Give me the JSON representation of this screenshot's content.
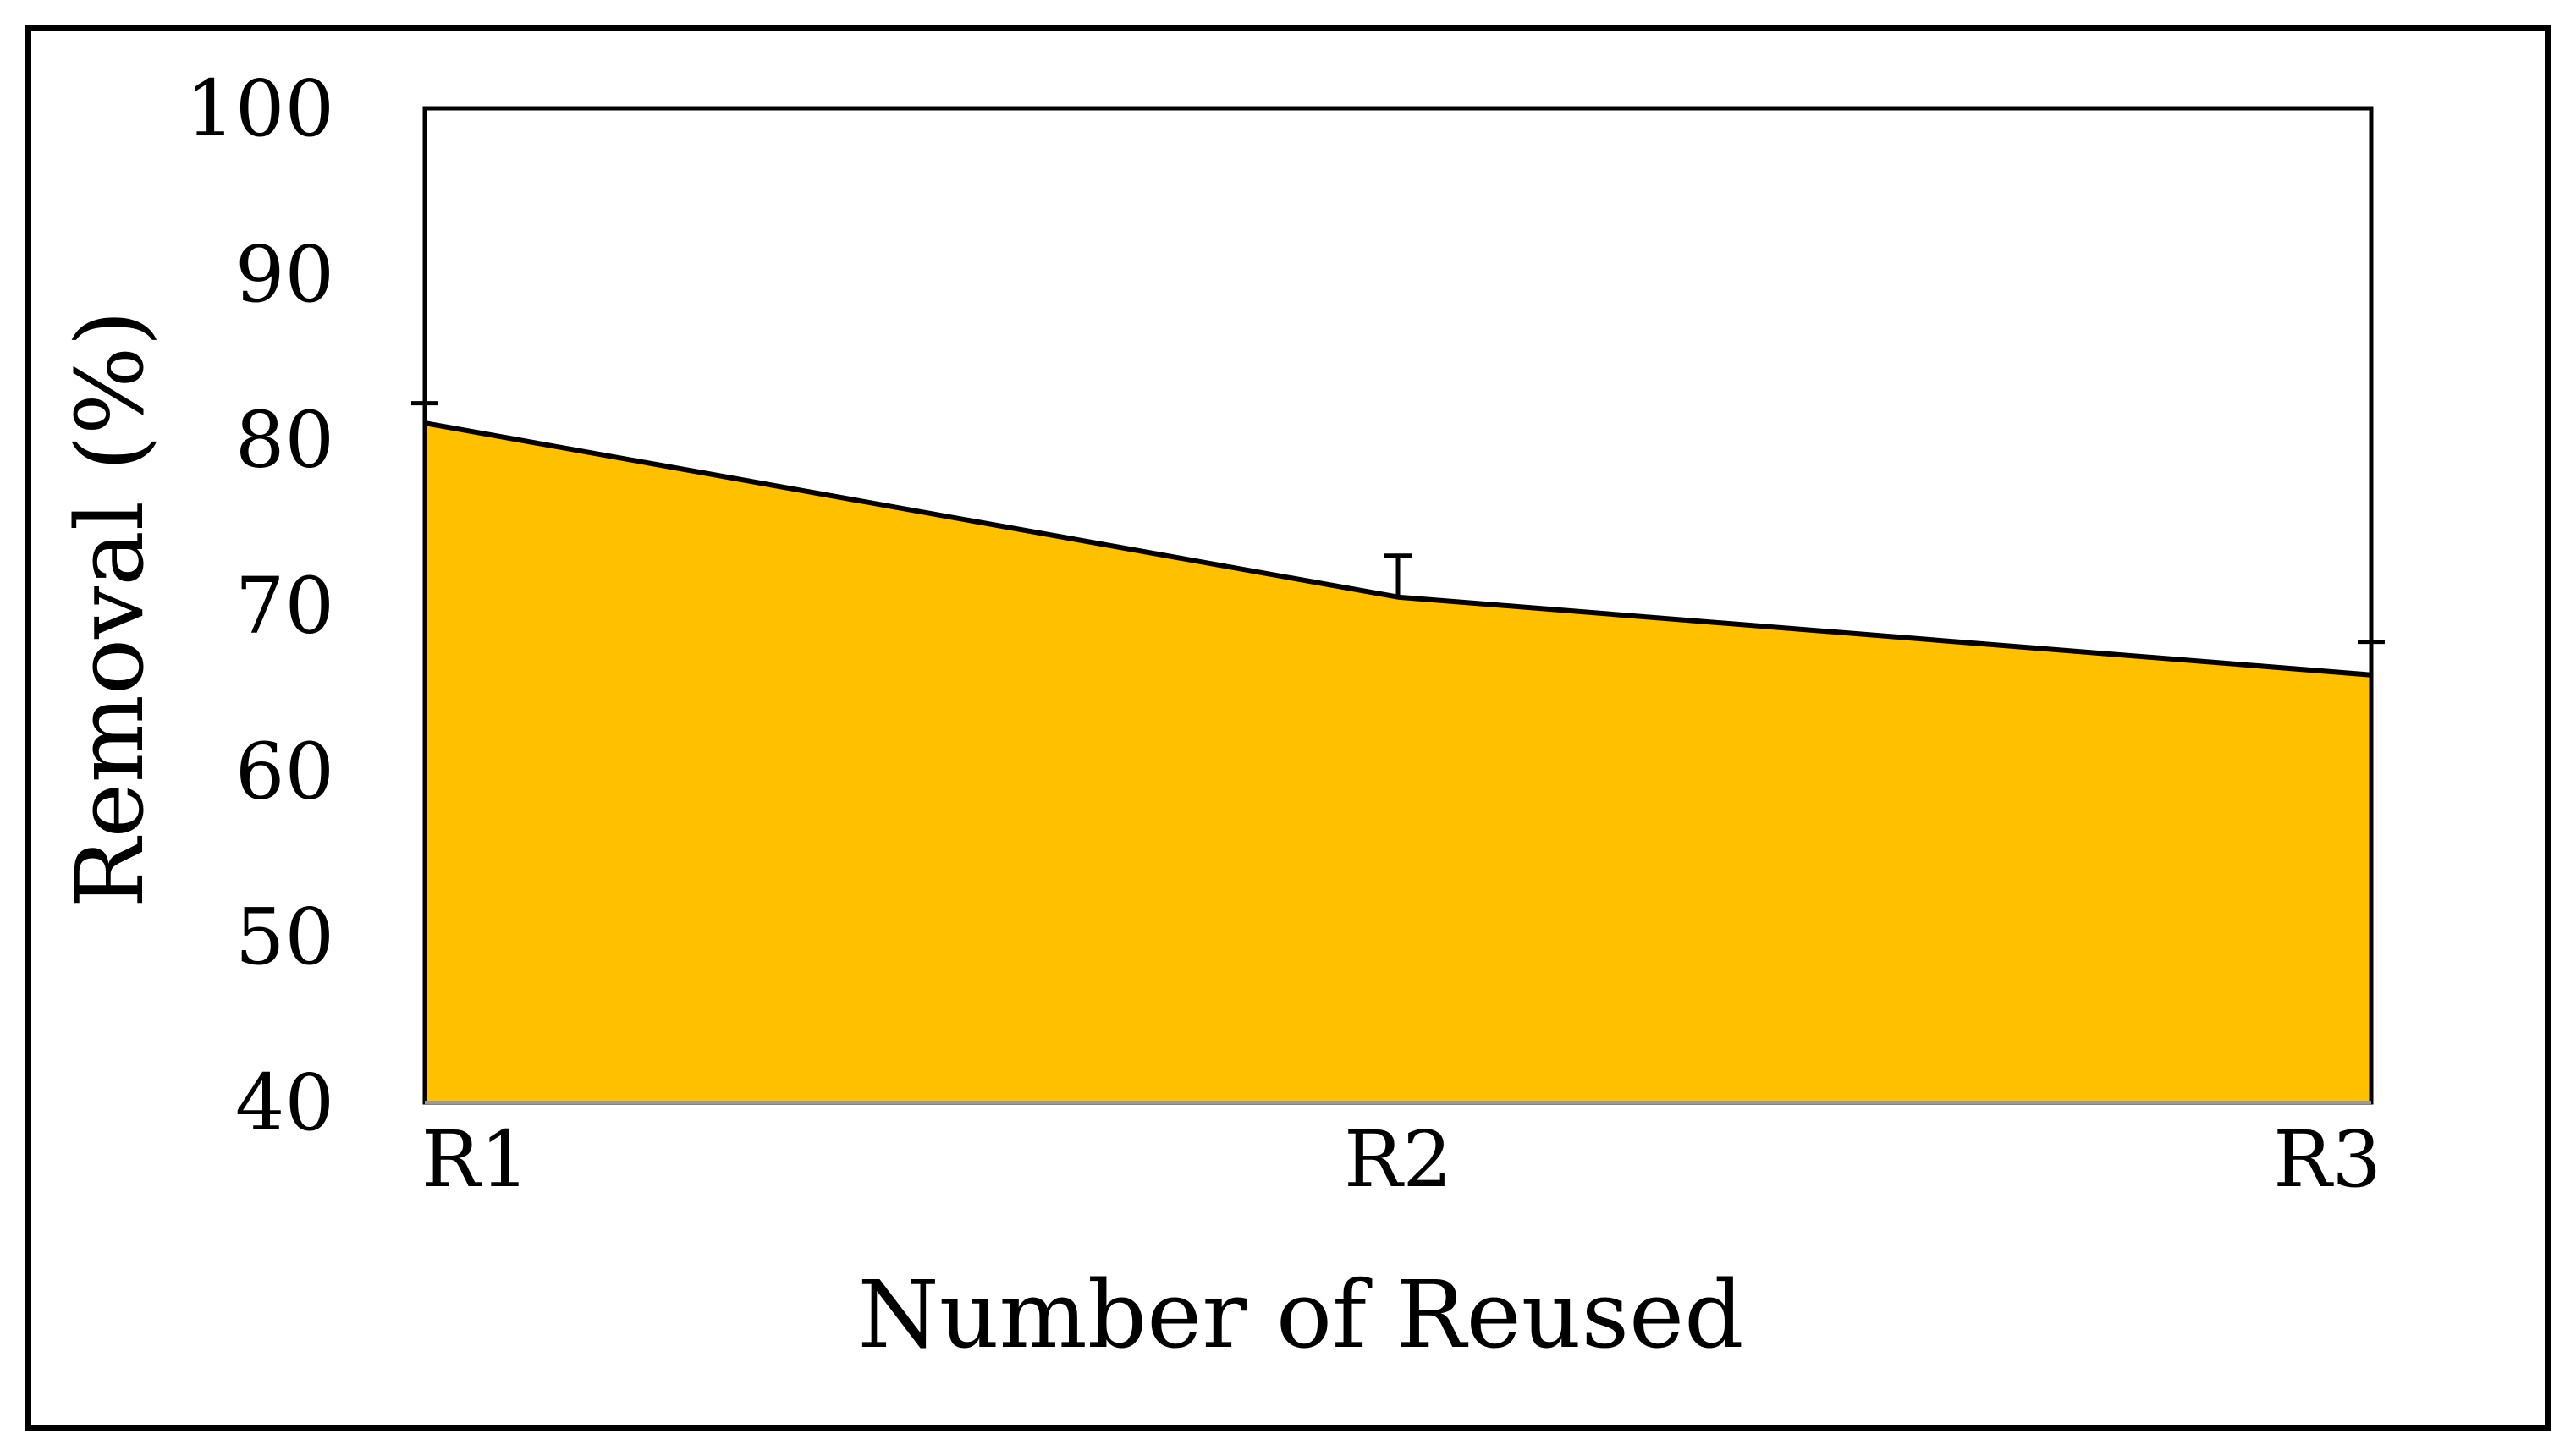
{
  "chart_data": {
    "type": "area",
    "title": "",
    "xlabel": "Number of Reused",
    "ylabel": "Removal (%)",
    "categories": [
      "R1",
      "R2",
      "R3"
    ],
    "series": [
      {
        "values": [
          81,
          70.5,
          65.8
        ],
        "error_plus": [
          1.2,
          2.5,
          2.0
        ]
      }
    ],
    "ylim": [
      40,
      100
    ],
    "yticks": [
      40,
      50,
      60,
      70,
      80,
      90,
      100
    ],
    "grid": false,
    "legend": "none",
    "fill_color": "#FFC000",
    "line_color": "#000000"
  }
}
